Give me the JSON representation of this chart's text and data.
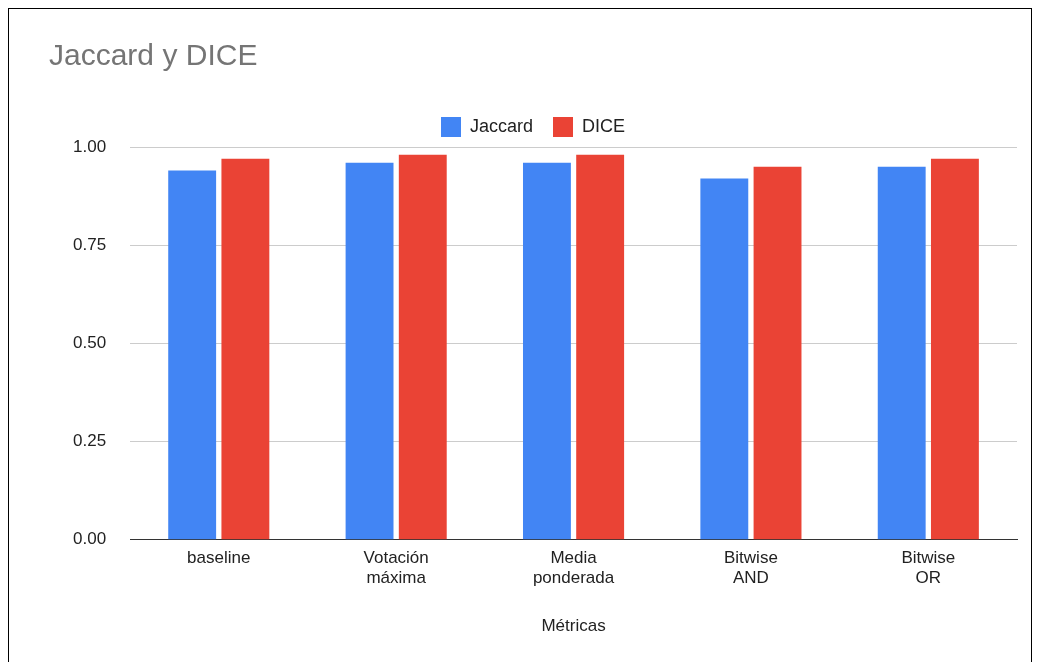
{
  "chart_data": {
    "type": "bar",
    "title": "Jaccard y DICE",
    "xlabel": "Métricas",
    "categories": [
      "baseline",
      "Votación máxima",
      "Media ponderada",
      "Bitwise AND",
      "Bitwise OR"
    ],
    "series": [
      {
        "name": "Jaccard",
        "color": "#4285f4",
        "values": [
          0.94,
          0.96,
          0.96,
          0.92,
          0.95
        ]
      },
      {
        "name": "DICE",
        "color": "#ea4335",
        "values": [
          0.97,
          0.98,
          0.98,
          0.95,
          0.97
        ]
      }
    ],
    "ylim": [
      0,
      1
    ],
    "yticks": [
      {
        "value": 0,
        "label": "0.00"
      },
      {
        "value": 0.25,
        "label": "0.25"
      },
      {
        "value": 0.5,
        "label": "0.50"
      },
      {
        "value": 0.75,
        "label": "0.75"
      },
      {
        "value": 1,
        "label": "1.00"
      }
    ],
    "grid": "y",
    "legend": "top"
  }
}
